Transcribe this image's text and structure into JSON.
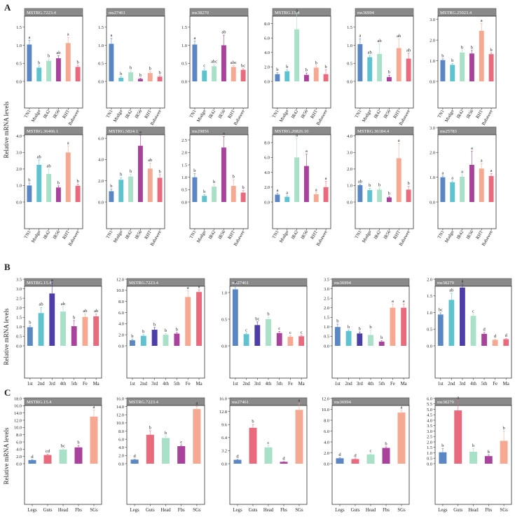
{
  "section_labels": [
    "A",
    "B",
    "C"
  ],
  "ylabel": "Relative mRNA levels",
  "colors": {
    "TN1": "#5b86c4",
    "Mudgo": "#5fc3cf",
    "IR42": "#a8e0c8",
    "IR56": "#a8429a",
    "RHT": "#f5a892",
    "Babawee": "#e86a7c",
    "1st": "#5b86c4",
    "2nd": "#5fc3cf",
    "3rd": "#4d3da8",
    "4th": "#a8e0c8",
    "5th": "#a8429a",
    "Fe": "#f5a892",
    "Ma": "#e86a7c",
    "Legs": "#5b86c4",
    "Guts": "#e86a7c",
    "Head": "#a8e0c8",
    "Fbs": "#a8429a",
    "SGs": "#f5a892"
  },
  "chart_data": [
    {
      "section": "A",
      "type": "bar",
      "title": "MSTRG.7223.4",
      "categories": [
        "TN1",
        "Mudgo",
        "IR42",
        "IR56",
        "RHT",
        "Babawee"
      ],
      "values": [
        1.02,
        0.38,
        0.57,
        0.64,
        1.06,
        0.4
      ],
      "errors": [
        0.12,
        0.05,
        0.05,
        0.07,
        0.16,
        0.05
      ],
      "labels": [
        "a",
        "b",
        "b",
        "ab",
        "a",
        "b"
      ],
      "ylim": [
        0,
        2.0
      ],
      "yticks": [
        "0.0",
        "0.5",
        "1.0",
        "1.5"
      ]
    },
    {
      "section": "A",
      "type": "bar",
      "title": "ms27461",
      "categories": [
        "TN1",
        "Mudgo",
        "IR42",
        "IR56",
        "RHT",
        "Babawee"
      ],
      "values": [
        1.04,
        0.1,
        0.25,
        0.07,
        0.23,
        0.13
      ],
      "errors": [
        0.15,
        0.03,
        0.04,
        0.02,
        0.04,
        0.03
      ],
      "labels": [
        "a",
        "b",
        "b",
        "b",
        "b",
        "b"
      ],
      "ylim": [
        0,
        2.0
      ],
      "yticks": [
        "0.0",
        "0.5",
        "1.0",
        "1.5"
      ]
    },
    {
      "section": "A",
      "type": "bar",
      "title": "ms38270",
      "categories": [
        "TN1",
        "Mudgo",
        "IR42",
        "IR56",
        "RHT",
        "Babawee"
      ],
      "values": [
        1.02,
        0.3,
        0.42,
        1.0,
        0.4,
        0.32
      ],
      "errors": [
        0.1,
        0.05,
        0.05,
        0.28,
        0.04,
        0.03
      ],
      "labels": [
        "a",
        "c",
        "abc",
        "ab",
        "abc",
        "bc"
      ],
      "ylim": [
        0,
        2.0
      ],
      "yticks": [
        "0.0",
        "0.5",
        "1.0",
        "1.5"
      ]
    },
    {
      "section": "A",
      "type": "bar",
      "title": "MSTRG.15.4",
      "categories": [
        "TN1",
        "Mudgo",
        "IR42",
        "IR56",
        "RHT",
        "Babawee"
      ],
      "values": [
        1.0,
        1.4,
        7.2,
        0.9,
        1.9,
        1.0
      ],
      "errors": [
        0.2,
        0.2,
        2.2,
        0.25,
        0.25,
        0.6
      ],
      "labels": [
        "b",
        "b",
        "a",
        "b",
        "b",
        "b"
      ],
      "ylim": [
        0,
        10.0
      ],
      "yticks": [
        "0.0",
        "2.0",
        "4.0",
        "6.0",
        "8.0"
      ]
    },
    {
      "section": "A",
      "type": "bar",
      "title": "ms36994",
      "categories": [
        "TN1",
        "Mudgo",
        "IR42",
        "IR56",
        "RHT",
        "Babawee"
      ],
      "values": [
        1.03,
        0.67,
        0.76,
        0.12,
        0.92,
        0.63
      ],
      "errors": [
        0.15,
        0.05,
        0.28,
        0.05,
        0.25,
        0.15
      ],
      "labels": [
        "a",
        "ab",
        "ab",
        "b",
        "ab",
        "ab"
      ],
      "ylim": [
        0,
        2.0
      ],
      "yticks": [
        "0.0",
        "0.5",
        "1.0",
        "1.5"
      ]
    },
    {
      "section": "A",
      "type": "bar",
      "title": "MSTRG.25023.4",
      "categories": [
        "TN1",
        "Mudgo",
        "IR42",
        "IR56",
        "RHT",
        "Babawee"
      ],
      "values": [
        1.03,
        0.8,
        1.4,
        1.35,
        2.45,
        1.32
      ],
      "errors": [
        0.06,
        0.06,
        0.1,
        0.15,
        0.35,
        0.06
      ],
      "labels": [
        "b",
        "b",
        "b",
        "b",
        "a",
        "b"
      ],
      "ylim": [
        0,
        3.5
      ],
      "yticks": [
        "0.0",
        "1.0",
        "2.0",
        "3.0"
      ]
    },
    {
      "section": "A",
      "type": "bar",
      "title": "MSTRG.36466.1",
      "categories": [
        "TN1",
        "Mudgo",
        "IR42",
        "IR56",
        "RHT",
        "Babawee"
      ],
      "values": [
        1.0,
        2.25,
        1.7,
        0.88,
        3.0,
        0.98
      ],
      "errors": [
        0.15,
        0.3,
        0.3,
        0.1,
        0.4,
        0.1
      ],
      "labels": [
        "b",
        "ab",
        "ab",
        "b",
        "a",
        "b"
      ],
      "ylim": [
        0,
        4.5
      ],
      "yticks": [
        "0.0",
        "1.0",
        "2.0",
        "3.0",
        "4.0"
      ]
    },
    {
      "section": "A",
      "type": "bar",
      "title": "MSTRG.5824.1",
      "categories": [
        "TN1",
        "Mudgo",
        "IR42",
        "IR56",
        "RHT",
        "Babawee"
      ],
      "values": [
        1.02,
        2.1,
        2.4,
        5.3,
        3.15,
        2.28
      ],
      "errors": [
        0.2,
        0.2,
        0.2,
        1.0,
        0.5,
        0.3
      ],
      "labels": [
        "b",
        "b",
        "b",
        "a",
        "ab",
        "b"
      ],
      "ylim": [
        0,
        7.0
      ],
      "yticks": [
        "0.0",
        "2.0",
        "4.0",
        "6.0"
      ]
    },
    {
      "section": "A",
      "type": "bar",
      "title": "ms29856",
      "categories": [
        "TN1",
        "Mudgo",
        "IR42",
        "IR56",
        "RHT",
        "Babawee"
      ],
      "values": [
        1.0,
        0.25,
        0.62,
        2.2,
        0.65,
        0.38
      ],
      "errors": [
        0.15,
        0.05,
        0.08,
        0.45,
        0.25,
        0.08
      ],
      "labels": [
        "b",
        "b",
        "b",
        "a",
        "b",
        "b"
      ],
      "ylim": [
        0,
        3.0
      ],
      "yticks": [
        "0.0",
        "0.5",
        "1.0",
        "1.5",
        "2.0",
        "2.5"
      ]
    },
    {
      "section": "A",
      "type": "bar",
      "title": "MSTRG.20826.10",
      "categories": [
        "TN1",
        "Mudgo",
        "IR42",
        "IR56",
        "RHT",
        "Babawee"
      ],
      "values": [
        1.0,
        0.7,
        6.0,
        4.85,
        1.05,
        2.0
      ],
      "errors": [
        0.2,
        0.15,
        2.6,
        1.6,
        0.2,
        0.8
      ],
      "labels": [
        "a",
        "a",
        "a",
        "a",
        "a",
        "a"
      ],
      "ylim": [
        0,
        10.0
      ],
      "yticks": [
        "0.0",
        "2.0",
        "4.0",
        "6.0",
        "8.0"
      ]
    },
    {
      "section": "A",
      "type": "bar",
      "title": "MSTRG.36184.4",
      "categories": [
        "TN1",
        "Mudgo",
        "IR42",
        "IR56",
        "RHT",
        "Babawee"
      ],
      "values": [
        1.02,
        0.72,
        0.75,
        0.28,
        2.65,
        0.75
      ],
      "errors": [
        0.05,
        0.1,
        0.1,
        0.06,
        0.9,
        0.2
      ],
      "labels": [
        "ab",
        "b",
        "b",
        "b",
        "a",
        "b"
      ],
      "ylim": [
        0,
        4.5
      ],
      "yticks": [
        "0.0",
        "1.0",
        "2.0",
        "3.0",
        "4.0"
      ]
    },
    {
      "section": "A",
      "type": "bar",
      "title": "ms25783",
      "categories": [
        "TN1",
        "Mudgo",
        "IR42",
        "IR56",
        "RHT",
        "Babawee"
      ],
      "values": [
        1.0,
        0.8,
        1.02,
        1.5,
        1.35,
        1.05
      ],
      "errors": [
        0.05,
        0.05,
        0.08,
        0.55,
        0.2,
        0.1
      ],
      "labels": [
        "a",
        "a",
        "a",
        "a",
        "a",
        "a"
      ],
      "ylim": [
        0,
        3.0
      ],
      "yticks": [
        "0.0",
        "1.0",
        "2.0",
        "3.0"
      ]
    },
    {
      "section": "B",
      "type": "bar",
      "title": "MSTRG.15.4",
      "categories": [
        "1st",
        "2nd",
        "3rd",
        "4th",
        "5th",
        "Fe",
        "Ma"
      ],
      "values": [
        0.98,
        1.72,
        2.75,
        1.8,
        1.03,
        1.52,
        1.55
      ],
      "errors": [
        0.08,
        0.3,
        0.55,
        0.25,
        0.3,
        0.15,
        0.12
      ],
      "labels": [
        "b",
        "ab",
        "a",
        "ab",
        "b",
        "ab",
        "ab"
      ],
      "ylim": [
        0,
        3.5
      ],
      "yticks": [
        "0.0",
        "0.5",
        "1.0",
        "1.5",
        "2.0",
        "2.5",
        "3.0",
        "3.5"
      ]
    },
    {
      "section": "B",
      "type": "bar",
      "title": "MSTRG.7223.4",
      "categories": [
        "1st",
        "2nd",
        "3rd",
        "4th",
        "5th",
        "Fe",
        "Ma"
      ],
      "values": [
        1.0,
        1.8,
        2.9,
        2.0,
        2.2,
        8.8,
        9.7
      ],
      "errors": [
        0.2,
        0.2,
        0.4,
        0.2,
        0.2,
        1.1,
        0.4
      ],
      "labels": [
        "b",
        "b",
        "b",
        "b",
        "b",
        "a",
        "a"
      ],
      "ylim": [
        0,
        12.0
      ],
      "yticks": [
        "0.0",
        "2.0",
        "4.0",
        "6.0",
        "8.0",
        "10.0",
        "12.0"
      ]
    },
    {
      "section": "B",
      "type": "bar",
      "title": "ms27461",
      "categories": [
        "1st",
        "2nd",
        "3rd",
        "4th",
        "5th",
        "Fe",
        "Ma"
      ],
      "values": [
        1.06,
        0.22,
        0.39,
        0.5,
        0.24,
        0.17,
        0.18
      ],
      "errors": [
        0.08,
        0.02,
        0.06,
        0.04,
        0.03,
        0.02,
        0.02
      ],
      "labels": [
        "a",
        "c",
        "bc",
        "b",
        "c",
        "c",
        "c"
      ],
      "ylim": [
        0,
        1.25
      ],
      "yticks": [
        "0.0",
        "0.5",
        "1.0"
      ]
    },
    {
      "section": "B",
      "type": "bar",
      "title": "ms36994",
      "categories": [
        "1st",
        "2nd",
        "3rd",
        "4th",
        "5th",
        "Fe",
        "Ma"
      ],
      "values": [
        0.99,
        0.78,
        0.65,
        0.57,
        0.22,
        2.0,
        2.0
      ],
      "errors": [
        0.15,
        0.05,
        0.08,
        0.25,
        0.05,
        0.2,
        0.2
      ],
      "labels": [
        "b",
        "b",
        "b",
        "b",
        "b",
        "a",
        "a"
      ],
      "ylim": [
        0,
        3.5
      ],
      "yticks": [
        "0.0",
        "0.5",
        "1.0",
        "1.5",
        "2.0",
        "2.5",
        "3.0",
        "3.5"
      ]
    },
    {
      "section": "B",
      "type": "bar",
      "title": "ms38279",
      "categories": [
        "1st",
        "2nd",
        "3rd",
        "4th",
        "5th",
        "Fe",
        "Ma"
      ],
      "values": [
        0.94,
        1.38,
        1.75,
        0.9,
        0.36,
        0.18,
        0.2
      ],
      "errors": [
        0.05,
        0.2,
        0.1,
        0.05,
        0.04,
        0.02,
        0.02
      ],
      "labels": [
        "bc",
        "ab",
        "a",
        "c",
        "d",
        "d",
        "d"
      ],
      "ylim": [
        0,
        2.0
      ],
      "yticks": [
        "0.0",
        "0.5",
        "1.0",
        "1.5",
        "2.0"
      ]
    },
    {
      "section": "C",
      "type": "bar",
      "title": "MSTRG.15.4",
      "categories": [
        "Legs",
        "Guts",
        "Head",
        "Fbs",
        "SGs"
      ],
      "values": [
        1.0,
        2.4,
        3.9,
        4.5,
        13.0
      ],
      "errors": [
        0.1,
        0.25,
        0.2,
        0.5,
        1.8
      ],
      "labels": [
        "d",
        "cd",
        "bc",
        "b",
        "a"
      ],
      "ylim": [
        0,
        18.0
      ],
      "yticks": [
        "0.0",
        "2.0",
        "4.0",
        "6.0",
        "8.0",
        "10.0",
        "12.0",
        "14.0",
        "16.0",
        "18.0"
      ]
    },
    {
      "section": "C",
      "type": "bar",
      "title": "MSTRG.7223.4",
      "categories": [
        "Legs",
        "Guts",
        "Head",
        "Fbs",
        "SGs"
      ],
      "values": [
        1.0,
        7.1,
        6.3,
        4.3,
        13.4
      ],
      "errors": [
        0.1,
        1.0,
        0.5,
        0.3,
        0.7
      ],
      "labels": [
        "d",
        "b",
        "b",
        "c",
        "a"
      ],
      "ylim": [
        0,
        16.0
      ],
      "yticks": [
        "0.0",
        "2.0",
        "4.0",
        "6.0",
        "8.0",
        "10.0",
        "12.0",
        "14.0",
        "16.0"
      ]
    },
    {
      "section": "C",
      "type": "bar",
      "title": "ms27461",
      "categories": [
        "Legs",
        "Guts",
        "Head",
        "Fbs",
        "SGs"
      ],
      "values": [
        0.95,
        8.8,
        4.0,
        0.45,
        13.2
      ],
      "errors": [
        0.1,
        0.8,
        0.4,
        0.05,
        1.6
      ],
      "labels": [
        "d",
        "b",
        "c",
        "d",
        "a"
      ],
      "ylim": [
        0,
        16.0
      ],
      "yticks": [
        "0.0",
        "3.2",
        "6.4",
        "9.6",
        "12.8",
        "16.0"
      ]
    },
    {
      "section": "C",
      "type": "bar",
      "title": "ms36994",
      "categories": [
        "Legs",
        "Guts",
        "Head",
        "Fbs",
        "SGs"
      ],
      "values": [
        1.0,
        0.85,
        1.7,
        2.9,
        9.4
      ],
      "errors": [
        0.1,
        0.08,
        0.1,
        0.2,
        0.4
      ],
      "labels": [
        "d",
        "d",
        "c",
        "b",
        "a"
      ],
      "ylim": [
        0,
        12.0
      ],
      "yticks": [
        "0.0",
        "2.0",
        "4.0",
        "6.0",
        "8.0",
        "10.0",
        "12.0"
      ]
    },
    {
      "section": "C",
      "type": "bar",
      "title": "ms38279",
      "categories": [
        "Legs",
        "Guts",
        "Head",
        "Fbs",
        "SGs"
      ],
      "values": [
        1.05,
        4.9,
        1.1,
        0.7,
        2.1
      ],
      "errors": [
        0.35,
        0.9,
        0.3,
        0.1,
        0.9
      ],
      "labels": [
        "b",
        "a",
        "b",
        "b",
        "b"
      ],
      "ylim": [
        0,
        6.0
      ],
      "yticks": [
        "0.0",
        "0.5",
        "1.0",
        "1.5",
        "2.0",
        "2.5",
        "3.0",
        "3.5",
        "4.0",
        "4.5",
        "5.0",
        "5.5",
        "6.0"
      ]
    }
  ]
}
